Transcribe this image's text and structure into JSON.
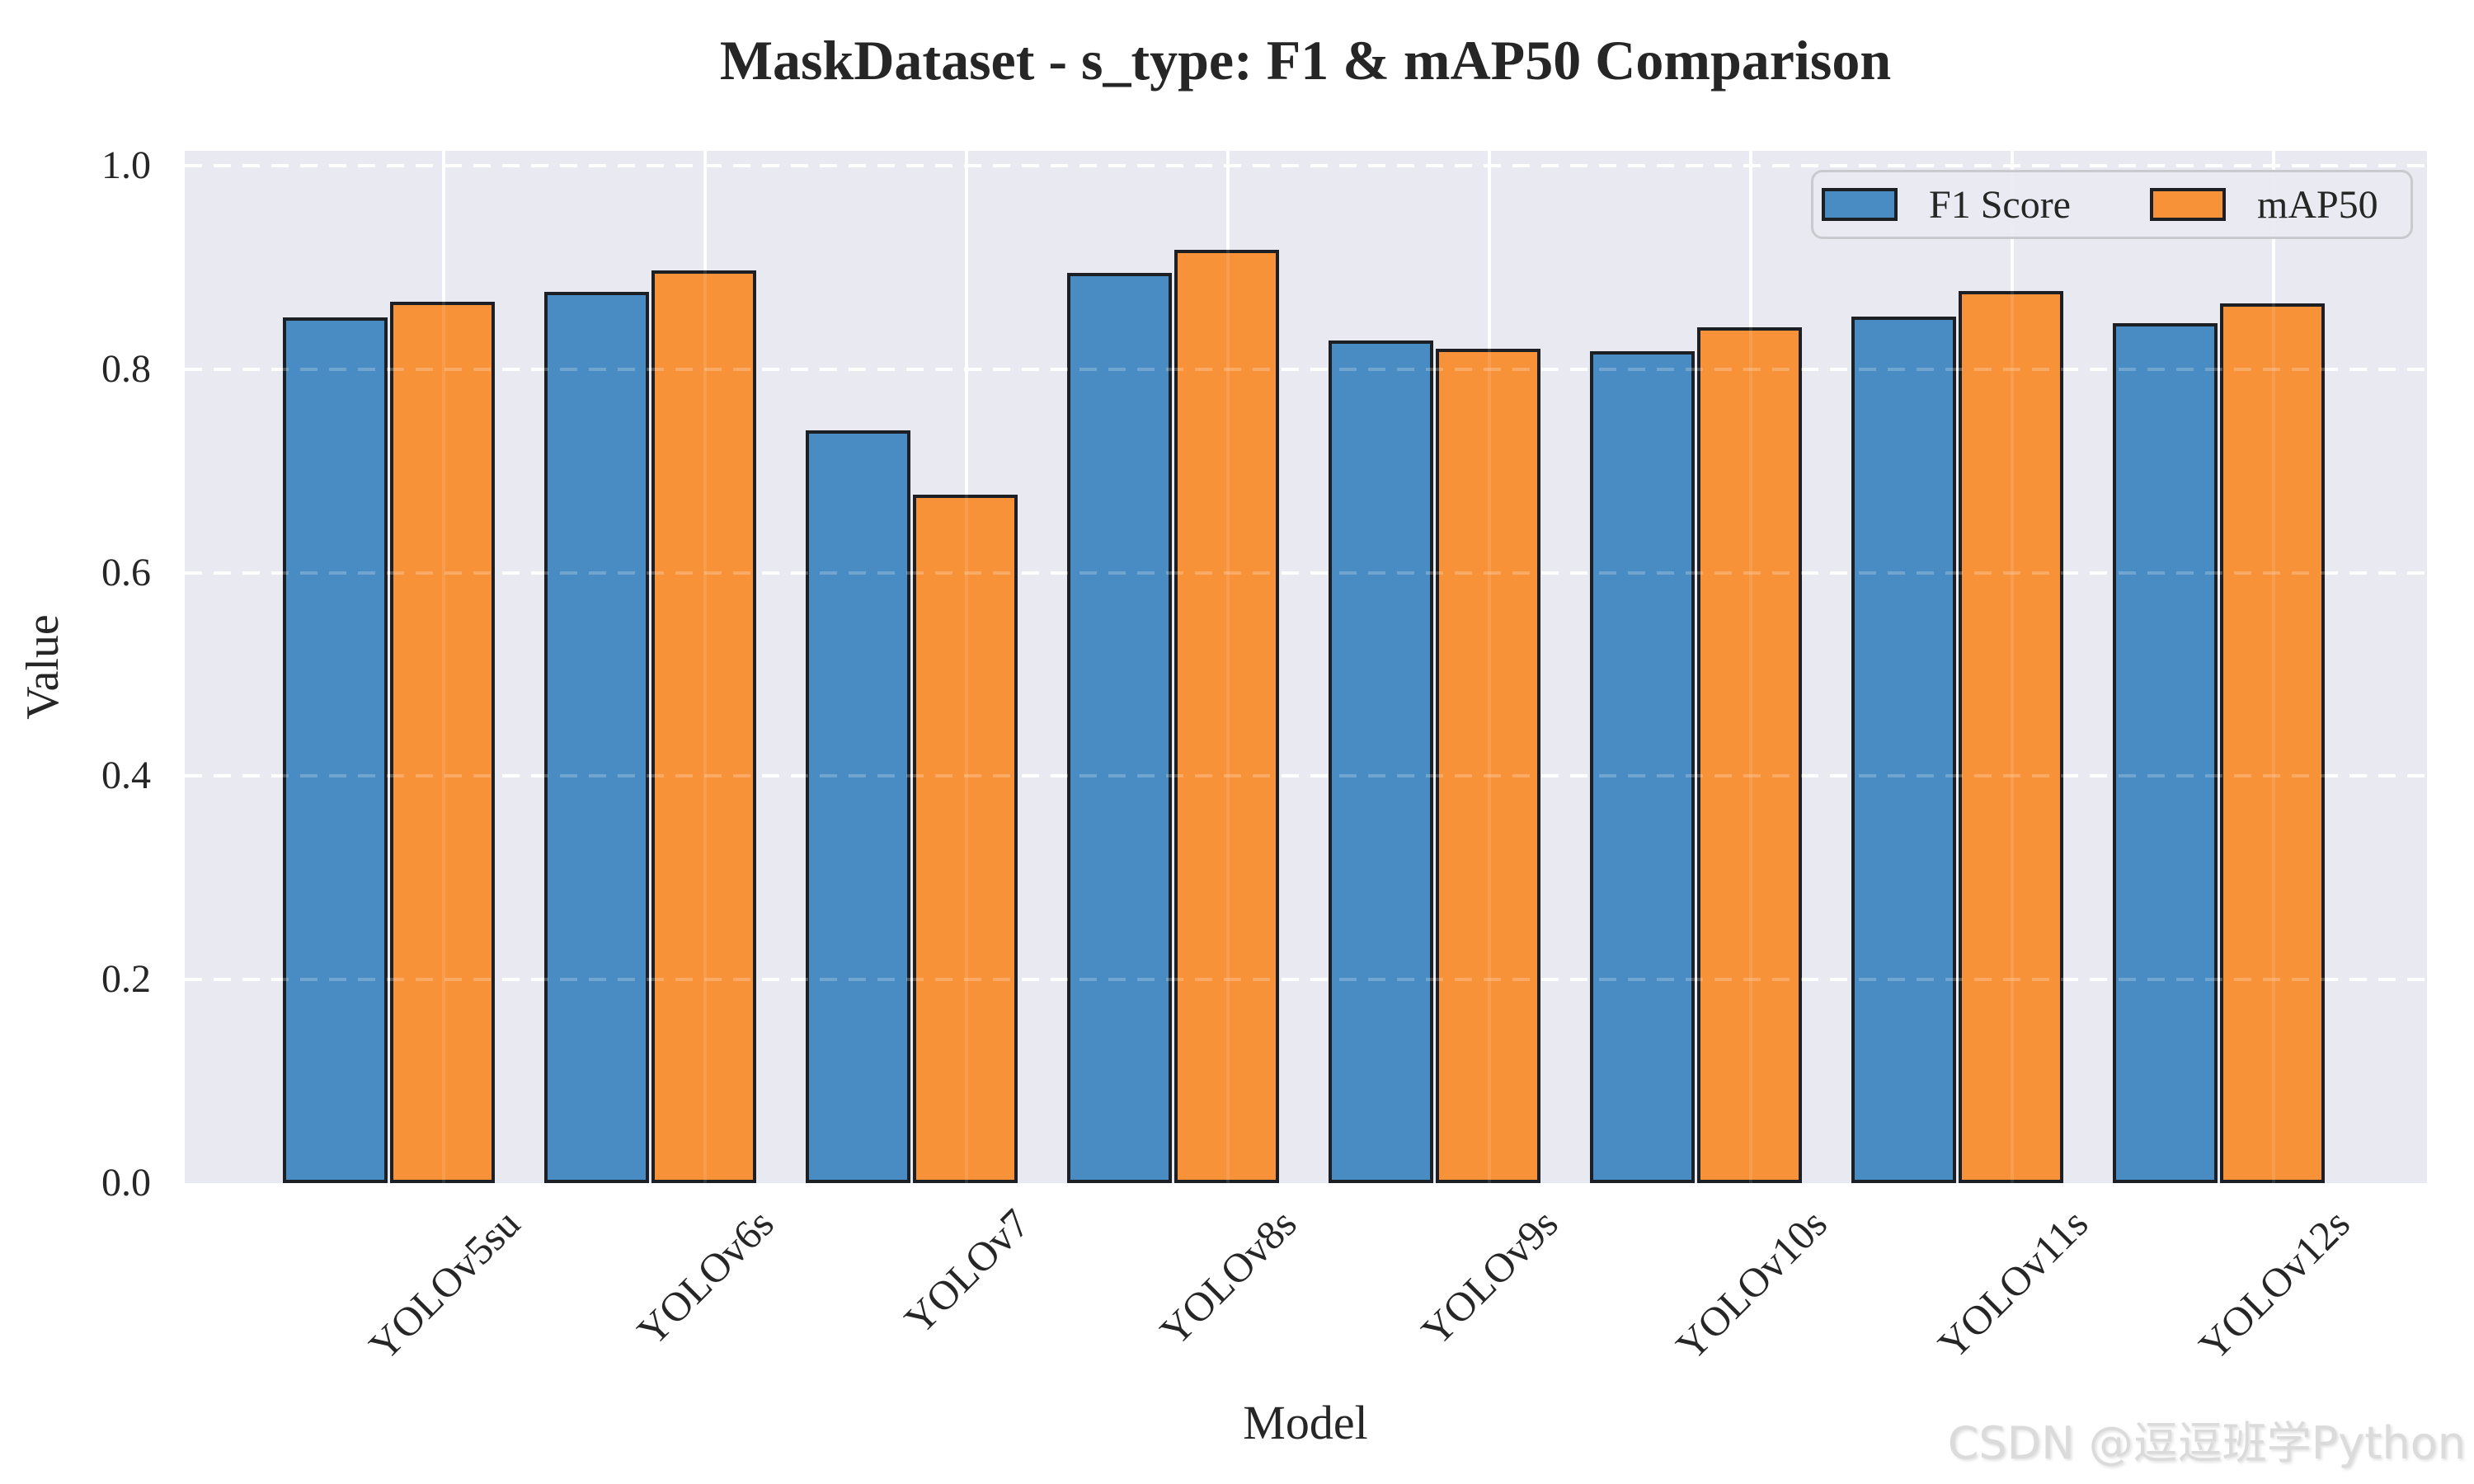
{
  "title": "MaskDataset - s_type: F1 & mAP50 Comparison",
  "watermark": {
    "text": "CSDN @逗逗班学Python"
  },
  "colors": {
    "bar_blue": "#488CC3",
    "bar_orange": "#F89239",
    "bar_edge": "#1C1F24",
    "plot_background": "#E9E9F1",
    "grid": "#FFFFFF",
    "legend_border": "#C9C9CE",
    "text": "#262626",
    "watermark_gray": "#DBDBDB"
  },
  "chart_data": {
    "type": "bar",
    "title": "MaskDataset - s_type: F1 & mAP50 Comparison",
    "xlabel": "Model",
    "ylabel": "Value",
    "categories": [
      "YOLOv5su",
      "YOLOv6s",
      "YOLOv7",
      "YOLOv8s",
      "YOLOv9s",
      "YOLOv10s",
      "YOLOv11s",
      "YOLOv12s"
    ],
    "series": [
      {
        "name": "F1 Score",
        "color": "#488CC3",
        "values": [
          0.851,
          0.876,
          0.74,
          0.895,
          0.828,
          0.818,
          0.852,
          0.845
        ]
      },
      {
        "name": "mAP50",
        "color": "#F89239",
        "values": [
          0.866,
          0.897,
          0.677,
          0.917,
          0.82,
          0.841,
          0.877,
          0.865
        ]
      }
    ],
    "ylim": [
      0.0,
      1.015
    ],
    "yticks": [
      "0.0",
      "0.2",
      "0.4",
      "0.6",
      "0.8",
      "1.0"
    ],
    "grid": "horizontal white dashed lines, vertical white solid lines",
    "legend_position": "upper right",
    "bar_edge_width": 4,
    "xtick_rotation": 45
  }
}
